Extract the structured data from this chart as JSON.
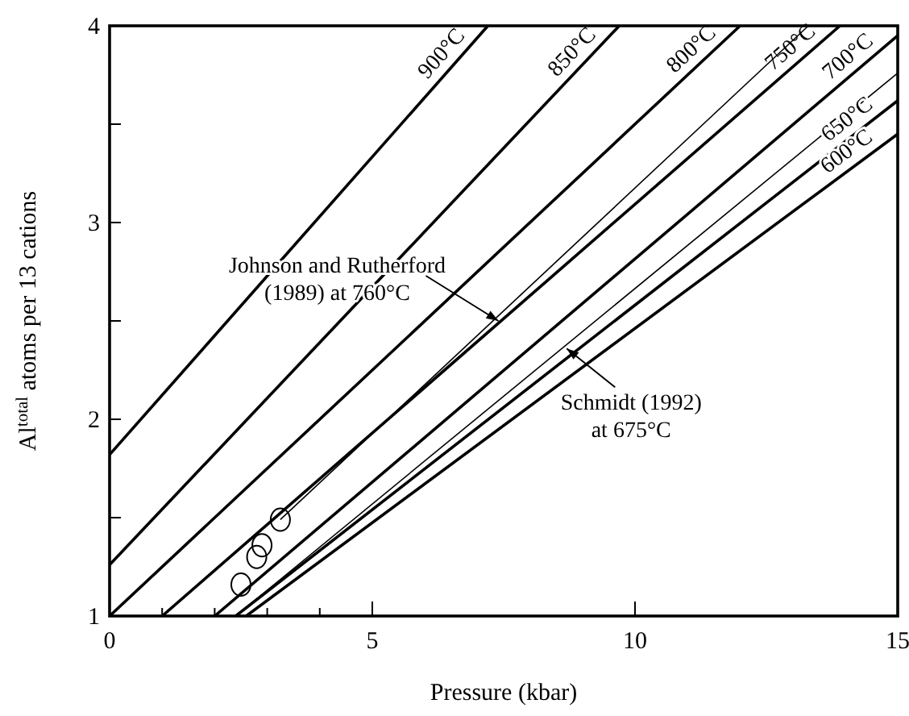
{
  "chart_data": {
    "type": "line",
    "xlabel": "Pressure (kbar)",
    "ylabel": "Al$^{total}$ atoms per 13 cations",
    "xlim": [
      0,
      15
    ],
    "ylim": [
      1,
      4
    ],
    "xticks": [
      0,
      {
        "value": 1,
        "label": null
      },
      {
        "value": 2,
        "label": null
      },
      {
        "value": 3,
        "label": null
      },
      {
        "value": 4,
        "label": null
      },
      5,
      10,
      15
    ],
    "yticks": [
      1,
      {
        "value": 1.5,
        "label": null
      },
      2,
      {
        "value": 2.5,
        "label": null
      },
      3,
      {
        "value": 3.5,
        "label": null
      },
      4
    ],
    "grid": false,
    "marker": "none",
    "line_style": "solid",
    "series": [
      {
        "name": "900°C",
        "color": "#000000",
        "x": [
          0,
          7.2
        ],
        "values": [
          1.82,
          4
        ]
      },
      {
        "name": "850°C",
        "color": "#000000",
        "x": [
          0,
          9.7
        ],
        "values": [
          1.26,
          4
        ]
      },
      {
        "name": "800°C",
        "color": "#000000",
        "x": [
          0,
          12.0
        ],
        "values": [
          1,
          4
        ]
      },
      {
        "name": "750°C",
        "color": "#000000",
        "x": [
          1.0,
          13.9
        ],
        "values": [
          1,
          4
        ]
      },
      {
        "color": "#000000",
        "x": [
          3.25,
          13.3
        ],
        "values": [
          1.49,
          4
        ]
      },
      {
        "name": "700°C",
        "color": "#000000",
        "x": [
          2.0,
          15
        ],
        "values": [
          1,
          3.95
        ]
      },
      {
        "color": "#000000",
        "x": [
          2.4,
          15
        ],
        "values": [
          1,
          3.76
        ]
      },
      {
        "name": "650°C",
        "color": "#000000",
        "x": [
          2.4,
          15
        ],
        "values": [
          1,
          3.62
        ]
      },
      {
        "name": "600°C",
        "color": "#000000",
        "x": [
          2.6,
          15
        ],
        "values": [
          1,
          3.45
        ]
      },
      {
        "type": "scatter",
        "marker": "circle",
        "color": "#000000",
        "x": [
          2.5,
          2.8,
          2.9,
          3.25
        ],
        "values": [
          1.16,
          1.3,
          1.36,
          1.49
        ]
      }
    ],
    "annotations": [
      {
        "text": "Johnson and Rutherford\n(1989) at 760°C",
        "x": 7.4,
        "y": 2.5
      },
      {
        "text": "Schmidt (1992)\nat 675°C",
        "x": 8.7,
        "y": 2.36
      }
    ]
  }
}
